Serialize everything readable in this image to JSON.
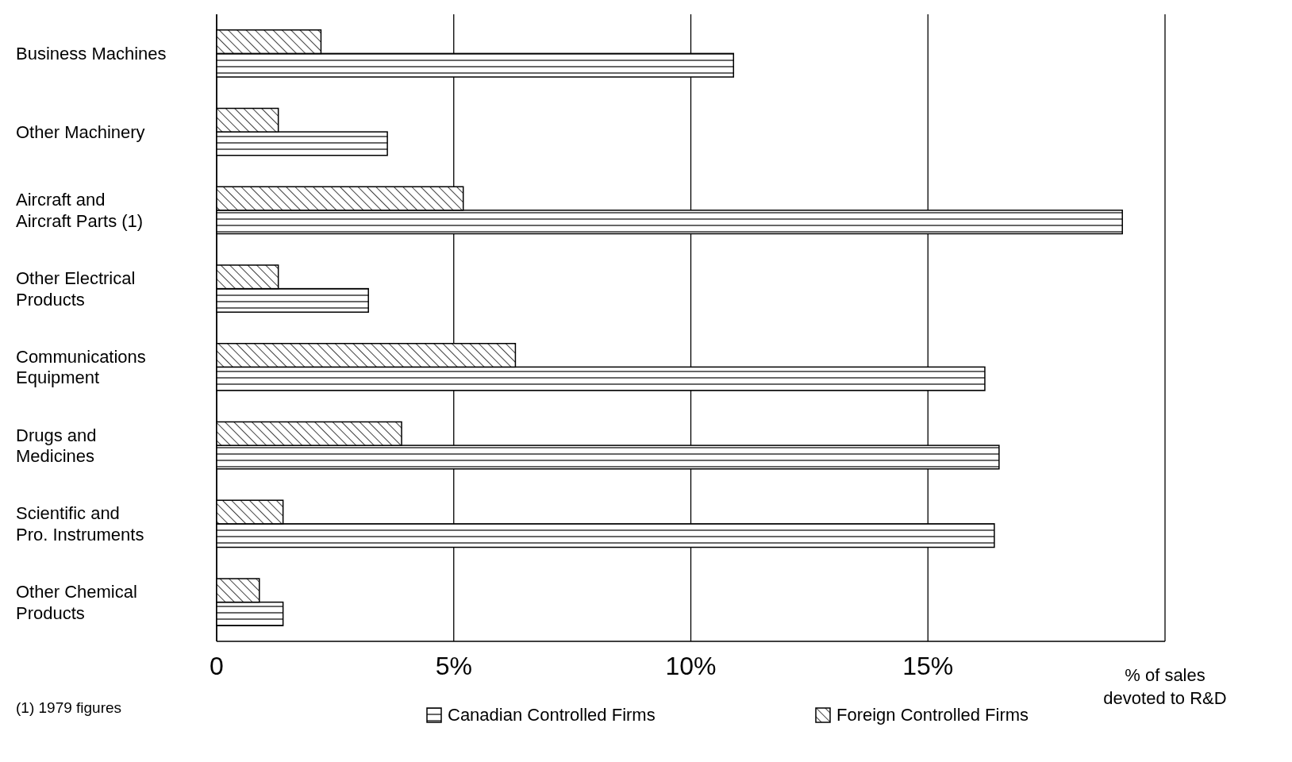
{
  "chart_data": {
    "type": "bar",
    "orientation": "horizontal",
    "xlabel": "% of sales\ndevoted to R&D",
    "categories": [
      "Business Machines",
      "Other Machinery",
      "Aircraft and\nAircraft Parts (1)",
      "Other Electrical\nProducts",
      "Communications\nEquipment",
      "Drugs and\nMedicines",
      "Scientific and\nPro. Instruments",
      "Other Chemical\nProducts"
    ],
    "series": [
      {
        "name": "Canadian Controlled Firms",
        "color": "#000000",
        "values": [
          10.9,
          3.6,
          19.1,
          3.2,
          16.2,
          16.5,
          16.4,
          1.4
        ]
      },
      {
        "name": "Foreign Controlled Firms",
        "color": "#000000",
        "values": [
          2.2,
          1.3,
          5.2,
          1.3,
          6.3,
          3.9,
          1.4,
          0.9
        ]
      }
    ],
    "xlim": [
      0,
      20
    ],
    "xticks": [
      0,
      {
        "value": 5,
        "label": "5%"
      },
      {
        "value": 10,
        "label": "10%"
      },
      {
        "value": 15,
        "label": "15%"
      },
      {
        "value": 20,
        "label": null
      }
    ],
    "grid": "x",
    "legend": "bottom",
    "annotations": [
      "(1) 1979 figures"
    ]
  }
}
